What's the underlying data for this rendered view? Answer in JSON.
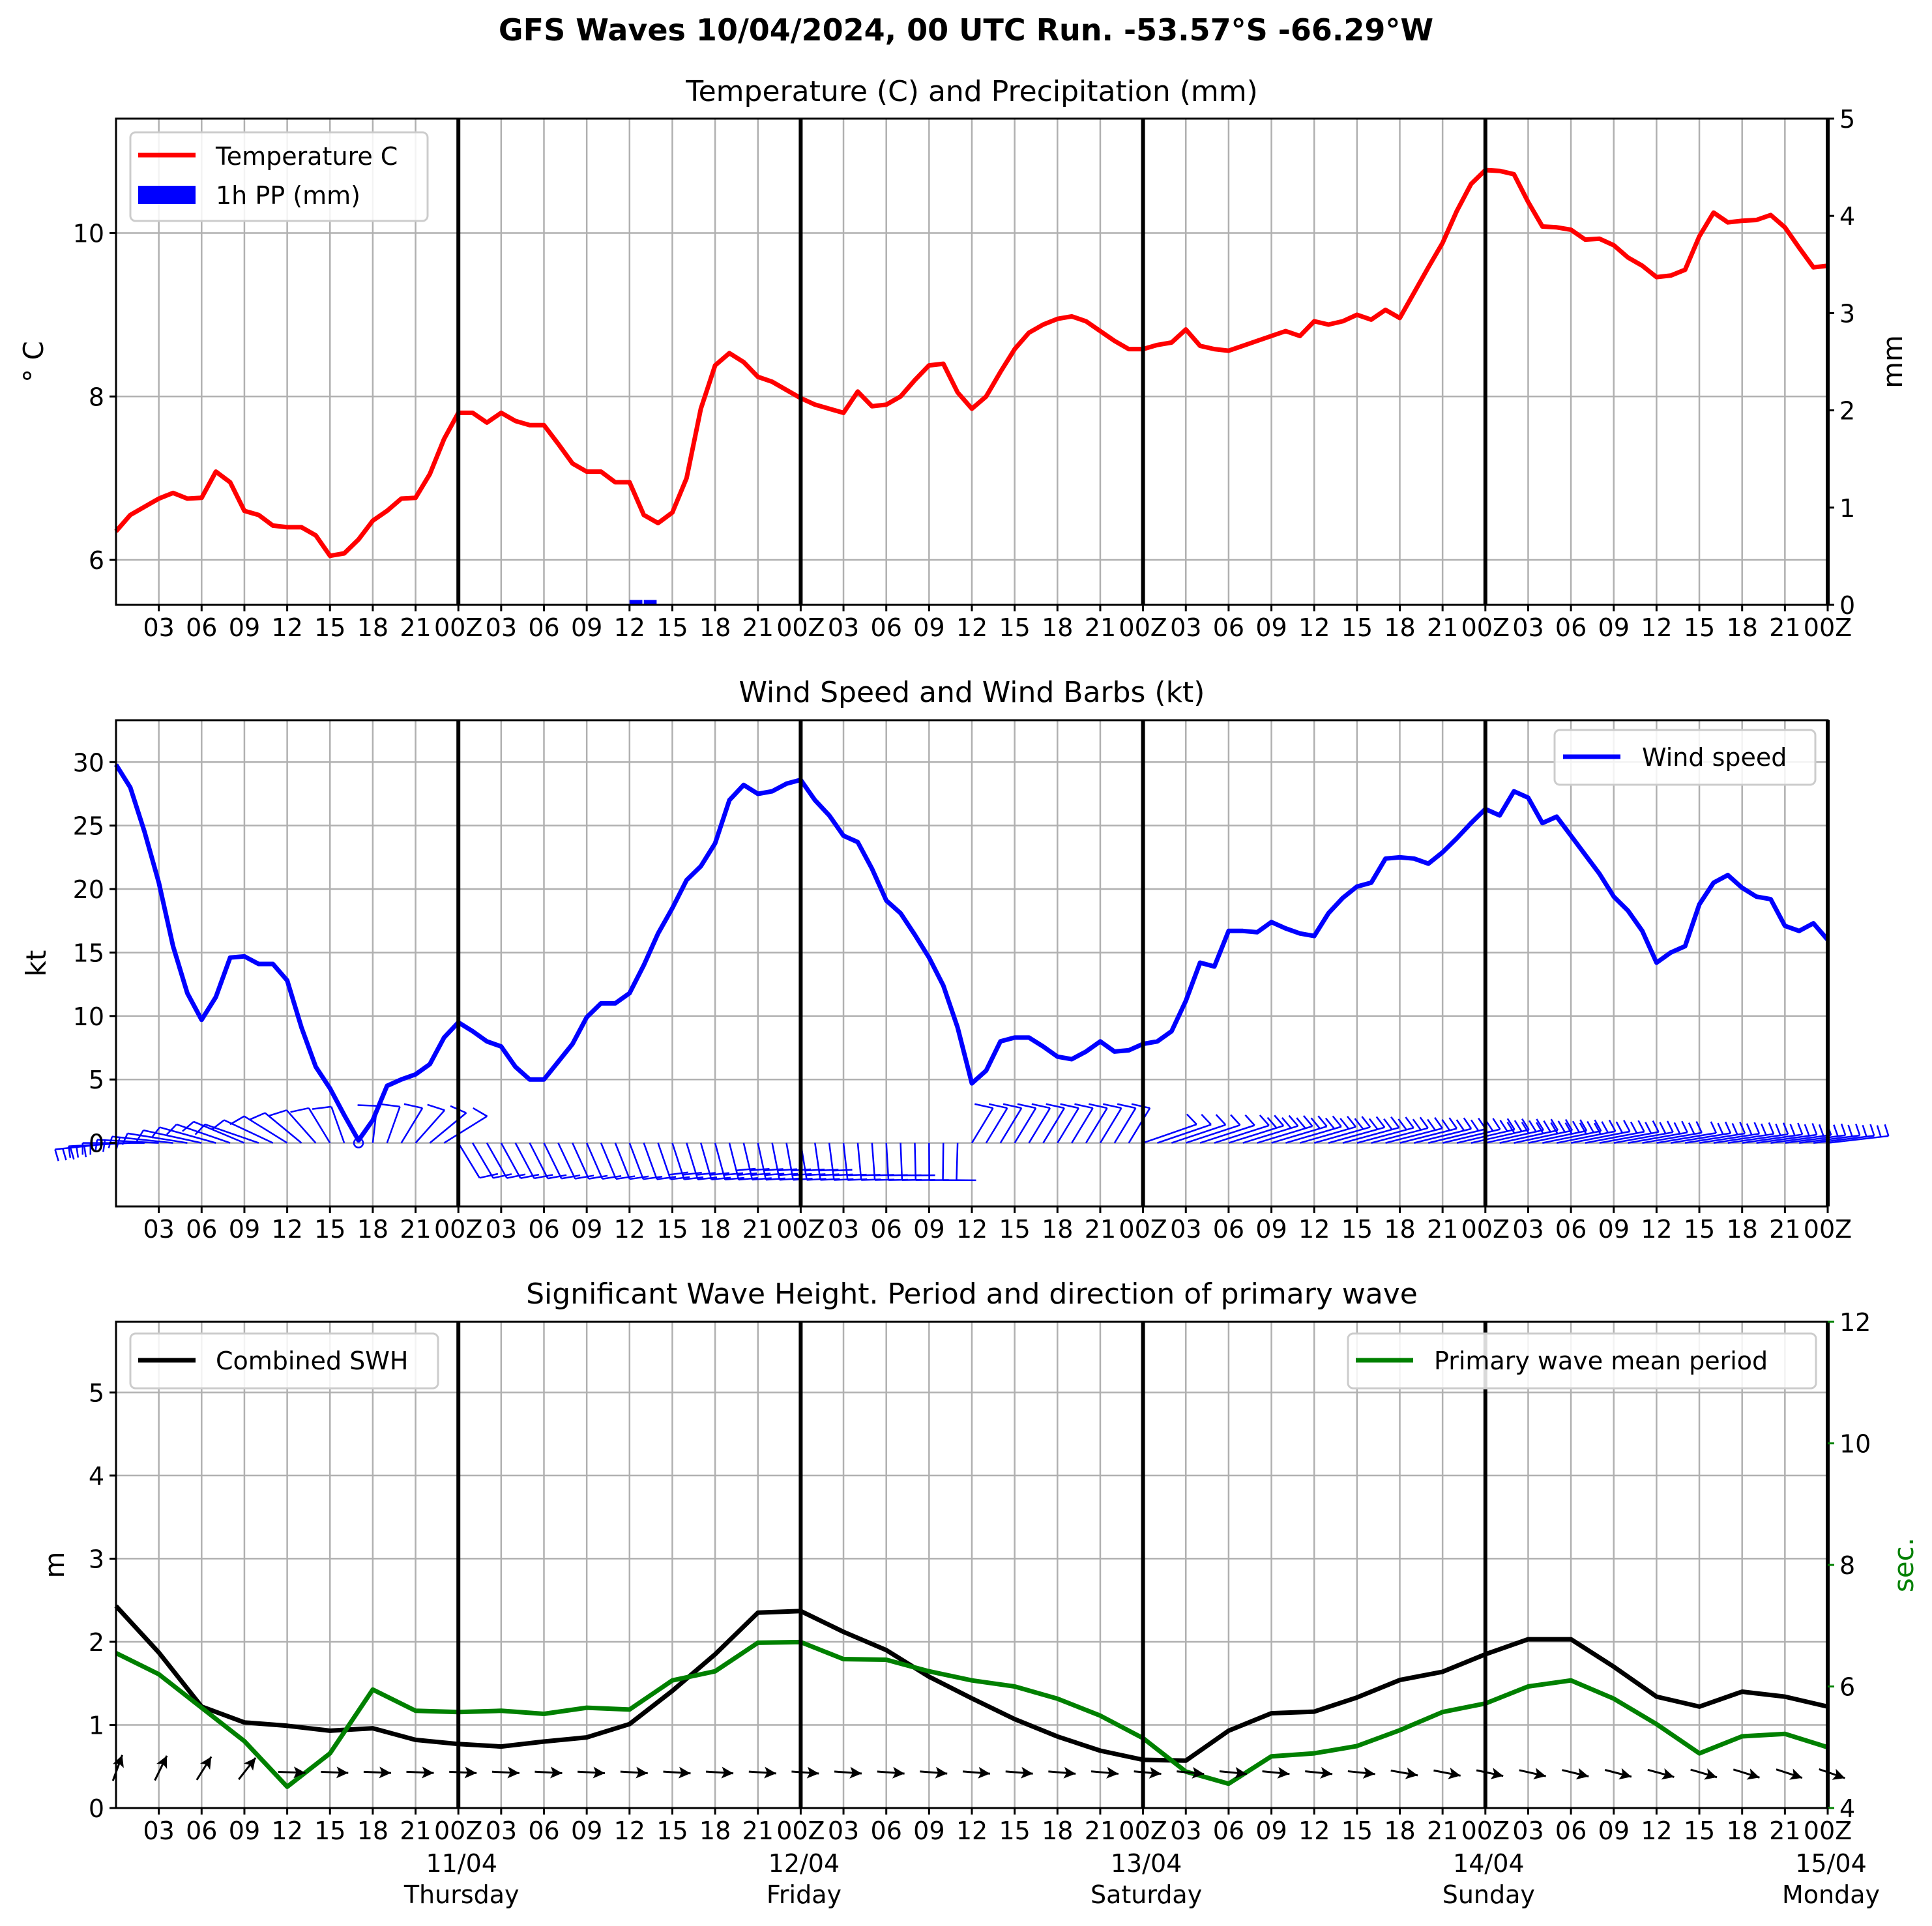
{
  "figure_title": "GFS Waves 10/04/2024, 00 UTC Run. -53.57°S -66.29°W",
  "colors": {
    "temperature": "#ff0000",
    "precip": "#0000ff",
    "wind": "#0000ff",
    "swh": "#000000",
    "period": "#008000",
    "grid": "#b0b0b0"
  },
  "x_ticks": [
    "03",
    "06",
    "09",
    "12",
    "15",
    "18",
    "21",
    "00Z",
    "03",
    "06",
    "09",
    "12",
    "15",
    "18",
    "21",
    "00Z",
    "03",
    "06",
    "09",
    "12",
    "15",
    "18",
    "21",
    "00Z",
    "03",
    "06",
    "09",
    "12",
    "15",
    "18",
    "21",
    "00Z",
    "03",
    "06",
    "09",
    "12",
    "15",
    "18",
    "21",
    "00Z"
  ],
  "day_labels": [
    {
      "date": "11/04",
      "day": "Thursday"
    },
    {
      "date": "12/04",
      "day": "Friday"
    },
    {
      "date": "13/04",
      "day": "Saturday"
    },
    {
      "date": "14/04",
      "day": "Sunday"
    },
    {
      "date": "15/04",
      "day": "Monday"
    }
  ],
  "chart_data": [
    {
      "type": "line",
      "title": "Temperature (C) and Precipitation (mm)",
      "x_unit": "hours from 10/04/2024 00 UTC",
      "ylabel": "° C",
      "ylabel_right": "mm",
      "ylim": [
        5.45,
        11.4
      ],
      "ylim_right": [
        0,
        5
      ],
      "yticks": [
        6,
        8,
        10
      ],
      "yticks_right": [
        0,
        1,
        2,
        3,
        4,
        5
      ],
      "grid": true,
      "legend_position": "upper left",
      "series": [
        {
          "name": "Temperature C",
          "x": [
            0,
            1,
            2,
            3,
            4,
            5,
            6,
            7,
            8,
            9,
            10,
            11,
            12,
            13,
            14,
            15,
            16,
            17,
            18,
            19,
            20,
            21,
            22,
            23,
            24,
            25,
            26,
            27,
            28,
            29,
            30,
            31,
            32,
            33,
            34,
            35,
            36,
            37,
            38,
            39,
            40,
            41,
            42,
            43,
            44,
            45,
            46,
            47,
            48,
            49,
            50,
            51,
            52,
            53,
            54,
            55,
            56,
            57,
            58,
            59,
            60,
            61,
            62,
            63,
            64,
            65,
            66,
            67,
            68,
            69,
            70,
            71,
            72,
            73,
            74,
            75,
            76,
            77,
            78,
            79,
            80,
            81,
            82,
            83,
            84,
            85,
            86,
            87,
            88,
            89,
            90,
            91,
            92,
            93,
            94,
            95,
            96,
            97,
            98,
            99,
            100,
            101,
            102,
            103,
            104,
            105,
            106,
            107,
            108,
            109,
            110,
            111,
            112,
            113,
            114,
            115,
            116,
            117,
            118,
            119,
            120
          ],
          "values": [
            6.35,
            6.55,
            6.65,
            6.75,
            6.82,
            6.75,
            6.76,
            7.08,
            6.95,
            6.6,
            6.55,
            6.42,
            6.4,
            6.4,
            6.3,
            6.05,
            6.08,
            6.25,
            6.48,
            6.6,
            6.75,
            6.76,
            7.05,
            7.48,
            7.8,
            7.8,
            7.68,
            7.8,
            7.7,
            7.65,
            7.65,
            7.42,
            7.18,
            7.08,
            7.08,
            6.95,
            6.95,
            6.55,
            6.45,
            6.58,
            7.0,
            7.85,
            8.38,
            8.53,
            8.42,
            8.24,
            8.18,
            8.08,
            7.98,
            7.9,
            7.85,
            7.8,
            8.06,
            7.88,
            7.9,
            8.0,
            8.2,
            8.38,
            8.4,
            8.05,
            7.85,
            8.0,
            8.3,
            8.58,
            8.78,
            8.88,
            8.95,
            8.98,
            8.92,
            8.8,
            8.68,
            8.58,
            8.58,
            8.63,
            8.66,
            8.82,
            8.62,
            8.58,
            8.56,
            8.62,
            8.68,
            8.74,
            8.8,
            8.74,
            8.92,
            8.88,
            8.92,
            9.0,
            8.94,
            9.06,
            8.96,
            9.27,
            9.58,
            9.88,
            10.27,
            10.6,
            10.77,
            10.76,
            10.72,
            10.38,
            10.08,
            10.07,
            10.04,
            9.92,
            9.93,
            9.85,
            9.7,
            9.6,
            9.46,
            9.48,
            9.55,
            9.96,
            10.25,
            10.13,
            10.15,
            10.16,
            10.22,
            10.07,
            9.82,
            9.58,
            9.6
          ]
        },
        {
          "name": "1h PP (mm)",
          "type": "bar",
          "axis": "right",
          "x": [
            36,
            37
          ],
          "values": [
            0.05,
            0.05
          ]
        }
      ]
    },
    {
      "type": "line",
      "title": "Wind Speed and Wind Barbs (kt)",
      "x_unit": "hours from 10/04/2024 00 UTC",
      "ylabel": "kt",
      "ylim": [
        -5,
        33.3
      ],
      "yticks": [
        0,
        5,
        10,
        15,
        20,
        25,
        30
      ],
      "grid": true,
      "legend_position": "upper right",
      "series": [
        {
          "name": "Wind speed",
          "x": [
            0,
            1,
            2,
            3,
            4,
            5,
            6,
            7,
            8,
            9,
            10,
            11,
            12,
            13,
            14,
            15,
            16,
            17,
            18,
            19,
            20,
            21,
            22,
            23,
            24,
            25,
            26,
            27,
            28,
            29,
            30,
            31,
            32,
            33,
            34,
            35,
            36,
            37,
            38,
            39,
            40,
            41,
            42,
            43,
            44,
            45,
            46,
            47,
            48,
            49,
            50,
            51,
            52,
            53,
            54,
            55,
            56,
            57,
            58,
            59,
            60,
            61,
            62,
            63,
            64,
            65,
            66,
            67,
            68,
            69,
            70,
            71,
            72,
            73,
            74,
            75,
            76,
            77,
            78,
            79,
            80,
            81,
            82,
            83,
            84,
            85,
            86,
            87,
            88,
            89,
            90,
            91,
            92,
            93,
            94,
            95,
            96,
            97,
            98,
            99,
            100,
            101,
            102,
            103,
            104,
            105,
            106,
            107,
            108,
            109,
            110,
            111,
            112,
            113,
            114,
            115,
            116,
            117,
            118,
            119,
            120
          ],
          "values": [
            29.8,
            28.0,
            24.5,
            20.5,
            15.5,
            11.8,
            9.7,
            11.5,
            14.6,
            14.7,
            14.1,
            14.1,
            12.8,
            9.1,
            6.0,
            4.3,
            2.2,
            0.2,
            1.8,
            4.5,
            5.0,
            5.4,
            6.2,
            8.3,
            9.5,
            8.8,
            8.0,
            7.6,
            6.0,
            5.0,
            5.0,
            6.4,
            7.8,
            9.9,
            11.0,
            11.0,
            11.8,
            14.0,
            16.5,
            18.5,
            20.7,
            21.8,
            23.6,
            27.0,
            28.2,
            27.5,
            27.7,
            28.3,
            28.6,
            27.0,
            25.8,
            24.2,
            23.7,
            21.6,
            19.1,
            18.1,
            16.4,
            14.6,
            12.4,
            9.1,
            4.7,
            5.7,
            8.0,
            8.3,
            8.3,
            7.6,
            6.8,
            6.6,
            7.2,
            8.0,
            7.2,
            7.3,
            7.8,
            8.0,
            8.8,
            11.2,
            14.2,
            13.9,
            16.7,
            16.7,
            16.6,
            17.4,
            16.9,
            16.5,
            16.3,
            18.1,
            19.3,
            20.2,
            20.5,
            22.4,
            22.5,
            22.4,
            22.0,
            22.9,
            24.0,
            25.2,
            26.3,
            25.8,
            27.7,
            27.2,
            25.2,
            25.7,
            24.2,
            22.7,
            21.2,
            19.4,
            18.3,
            16.7,
            14.2,
            15.0,
            15.5,
            18.8,
            20.5,
            21.1,
            20.1,
            19.4,
            19.2,
            17.1,
            16.7,
            17.3,
            16.0
          ]
        }
      ],
      "wind_barbs_shown": true
    },
    {
      "type": "line",
      "title": "Significant Wave Height. Period and direction of primary wave",
      "x_unit": "hours from 10/04/2024 00 UTC",
      "ylabel": "m",
      "ylabel_right": "sec.",
      "ylim": [
        0,
        5.85
      ],
      "ylim_right": [
        4,
        12
      ],
      "yticks": [
        0,
        1,
        2,
        3,
        4,
        5
      ],
      "yticks_right": [
        4,
        6,
        8,
        10,
        12
      ],
      "grid": true,
      "legend_position": "upper left / upper right",
      "series": [
        {
          "name": "Combined SWH",
          "x": [
            0,
            3,
            6,
            9,
            12,
            15,
            18,
            21,
            24,
            27,
            30,
            33,
            36,
            39,
            42,
            45,
            48,
            51,
            54,
            57,
            60,
            63,
            66,
            69,
            72,
            75,
            78,
            81,
            84,
            87,
            90,
            93,
            96,
            99,
            102,
            105,
            108,
            111,
            114,
            117,
            120
          ],
          "values": [
            2.43,
            1.87,
            1.22,
            1.03,
            0.99,
            0.93,
            0.96,
            0.82,
            0.77,
            0.74,
            0.8,
            0.85,
            1.01,
            1.41,
            1.85,
            2.35,
            2.37,
            2.12,
            1.9,
            1.58,
            1.32,
            1.07,
            0.86,
            0.69,
            0.58,
            0.57,
            0.93,
            1.14,
            1.16,
            1.33,
            1.54,
            1.64,
            1.85,
            2.03,
            2.03,
            1.7,
            1.34,
            1.22,
            1.4,
            1.34,
            1.22
          ]
        },
        {
          "name": "Primary wave mean period",
          "axis": "right",
          "x": [
            0,
            3,
            6,
            9,
            12,
            15,
            18,
            21,
            24,
            27,
            30,
            33,
            36,
            39,
            42,
            45,
            48,
            51,
            54,
            57,
            60,
            63,
            66,
            69,
            72,
            75,
            78,
            81,
            84,
            87,
            90,
            93,
            96,
            99,
            102,
            105,
            108,
            111,
            114,
            117,
            120
          ],
          "values": [
            6.55,
            6.2,
            5.65,
            5.1,
            4.35,
            4.9,
            5.95,
            5.6,
            5.58,
            5.6,
            5.55,
            5.65,
            5.62,
            6.1,
            6.25,
            6.72,
            6.73,
            6.45,
            6.44,
            6.25,
            6.1,
            6.0,
            5.8,
            5.52,
            5.15,
            4.6,
            4.4,
            4.85,
            4.9,
            5.02,
            5.28,
            5.58,
            5.72,
            6.0,
            6.1,
            5.8,
            5.38,
            4.9,
            5.18,
            5.22,
            5.0
          ]
        }
      ],
      "wave_direction_arrows_shown": true
    }
  ]
}
